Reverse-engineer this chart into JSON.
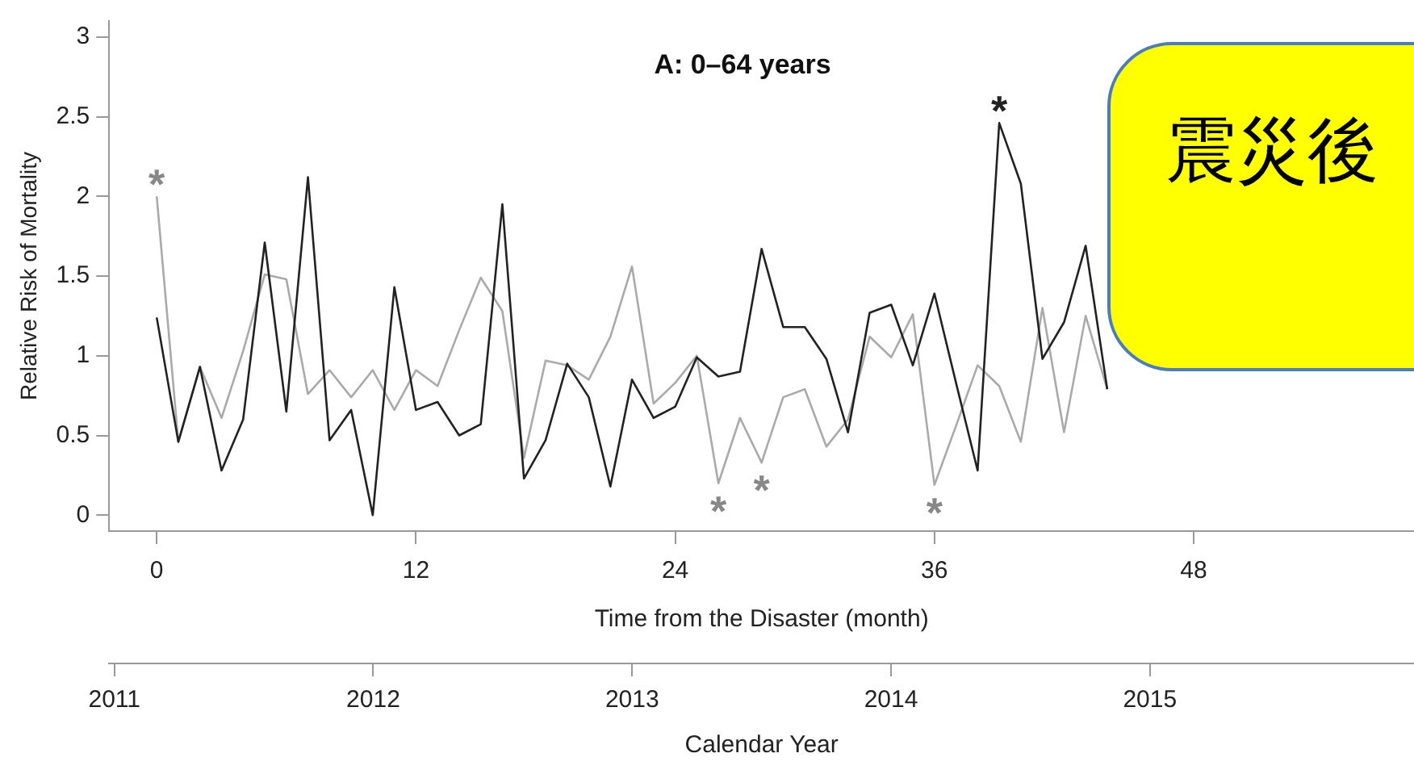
{
  "chart_data": {
    "type": "line",
    "title": "A: 0–64 years",
    "xlabel": "Time from the Disaster (month)",
    "ylabel": "Relative Risk of Mortality",
    "x2label": "Calendar Year",
    "x": [
      0,
      1,
      2,
      3,
      4,
      5,
      6,
      7,
      8,
      9,
      10,
      11,
      12,
      13,
      14,
      15,
      16,
      17,
      18,
      19,
      20,
      21,
      22,
      23,
      24,
      25,
      26,
      27,
      28,
      29,
      30,
      31,
      32,
      33,
      34,
      35,
      36,
      37,
      38,
      39,
      40,
      41,
      42,
      43,
      44
    ],
    "series": [
      {
        "color": "#222222",
        "values": [
          1.24,
          0.46,
          0.93,
          0.28,
          0.6,
          1.71,
          0.65,
          2.12,
          0.47,
          0.66,
          0.0,
          1.43,
          0.66,
          0.71,
          0.5,
          0.57,
          1.95,
          0.23,
          0.47,
          0.95,
          0.74,
          0.18,
          0.85,
          0.61,
          0.68,
          0.99,
          0.87,
          0.9,
          1.67,
          1.18,
          1.18,
          0.98,
          0.52,
          1.27,
          1.32,
          0.94,
          1.39,
          0.83,
          0.28,
          2.46,
          2.08,
          0.98,
          1.21,
          1.69,
          0.79
        ]
      },
      {
        "color": "#aaaaaa",
        "values": [
          2.0,
          0.46,
          0.93,
          0.61,
          1.03,
          1.51,
          1.48,
          0.76,
          0.91,
          0.74,
          0.91,
          0.66,
          0.91,
          0.81,
          1.16,
          1.49,
          1.28,
          0.36,
          0.97,
          0.94,
          0.85,
          1.12,
          1.56,
          0.7,
          0.83,
          1.0,
          0.2,
          0.61,
          0.33,
          0.74,
          0.79,
          0.43,
          0.6,
          1.12,
          0.99,
          1.26,
          0.19,
          0.56,
          0.94,
          0.81,
          0.46,
          1.3,
          0.52,
          1.25,
          0.79
        ]
      }
    ],
    "xlim": [
      -2.2,
      58.2
    ],
    "xticks": [
      0,
      12,
      24,
      36,
      48
    ],
    "x2lim": [
      2010.98,
      2016.02
    ],
    "x2ticks": [
      2011,
      2012,
      2013,
      2014,
      2015
    ],
    "ylim": [
      -0.1,
      3.1
    ],
    "yticks": [
      0,
      0.5,
      1,
      1.5,
      2,
      2.5,
      3
    ],
    "annotations": [
      {
        "text": "*",
        "x": 0,
        "y": 2.0
      },
      {
        "text": "*",
        "x": 26,
        "y": 0.2
      },
      {
        "text": "*",
        "x": 28,
        "y": 0.33
      },
      {
        "text": "*",
        "x": 36,
        "y": 0.19
      },
      {
        "text": "*",
        "x": 39,
        "y": 2.46
      },
      "震災後"
    ],
    "grid": false,
    "legend": false,
    "marker": "none",
    "line_style": "solid"
  }
}
